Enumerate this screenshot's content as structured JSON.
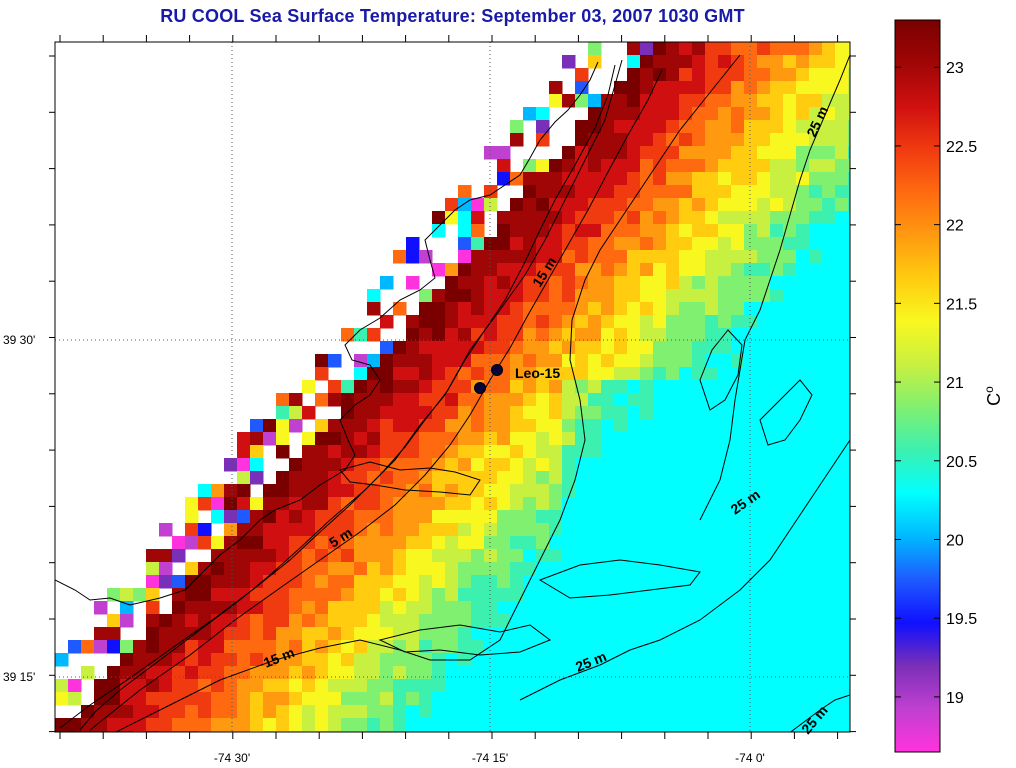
{
  "title": "RU COOL  Sea Surface Temperature:  September 03, 2007 1030 GMT",
  "lat_ticks": [
    {
      "label": "39 30'",
      "lat": 39.5
    },
    {
      "label": "39 15'",
      "lat": 39.25
    }
  ],
  "lon_ticks": [
    {
      "label": "-74 30'",
      "lon": -74.5
    },
    {
      "label": "-74 15'",
      "lon": -74.25
    },
    {
      "label": "-74 0'",
      "lon": -74.0
    }
  ],
  "station": {
    "label": "Leo-15"
  },
  "contour_labels": [
    "15 m",
    "5 m",
    "15 m",
    "25 m",
    "25 m",
    "25 m",
    "25 m"
  ],
  "colorbar": {
    "unit": "C",
    "unit_superscript": "o",
    "min": 18.65,
    "max": 23.3,
    "ticks": [
      "23",
      "22.5",
      "22",
      "21.5",
      "21",
      "20.5",
      "20",
      "19.5",
      "19"
    ],
    "tick_values": [
      23,
      22.5,
      22,
      21.5,
      21,
      20.5,
      20,
      19.5,
      19
    ],
    "colors": [
      "#ff33dd",
      "#c040d0",
      "#7a2fb8",
      "#1010ff",
      "#1e5aff",
      "#00b8ff",
      "#00ffff",
      "#3cf0b0",
      "#80f070",
      "#c8f040",
      "#f8f820",
      "#ffcc10",
      "#ff9a10",
      "#ff6a10",
      "#f03a10",
      "#d01010",
      "#a00606",
      "#7a0000"
    ]
  }
}
